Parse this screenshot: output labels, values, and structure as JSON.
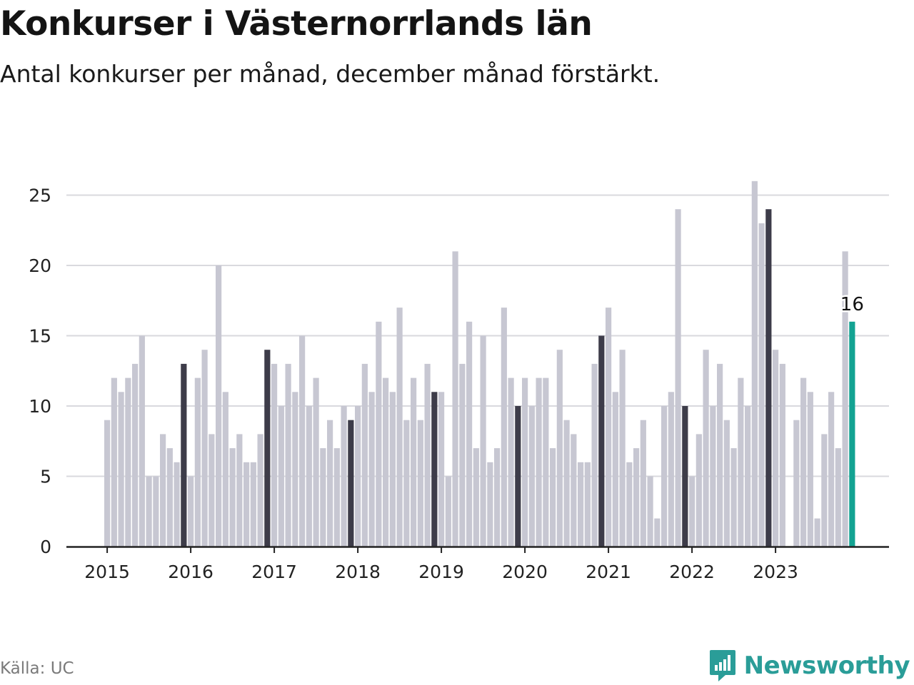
{
  "title": "Konkurser i Västernorrlands län",
  "subtitle": "Antal konkurser per månad, december månad förstärkt.",
  "source": "Källa: UC",
  "brand": "Newsworthy",
  "colors": {
    "bar": "#c7c7d2",
    "december": "#3d3c49",
    "latest": "#13a392",
    "grid": "#d9d9de",
    "axis": "#222222",
    "text": "#222222",
    "brand": "#2a9d98"
  },
  "chart_data": {
    "type": "bar",
    "x_start": "2015-01",
    "x_end": "2023-12",
    "x_ticks": [
      "2015",
      "2016",
      "2017",
      "2018",
      "2019",
      "2020",
      "2021",
      "2022",
      "2023"
    ],
    "ylim": [
      0,
      27
    ],
    "yticks": [
      0,
      5,
      10,
      15,
      20,
      25
    ],
    "grid": true,
    "highlight": "december",
    "values": [
      9,
      12,
      11,
      12,
      13,
      15,
      5,
      5,
      8,
      7,
      6,
      13,
      5,
      12,
      14,
      8,
      20,
      11,
      7,
      8,
      6,
      6,
      8,
      14,
      13,
      10,
      13,
      11,
      15,
      10,
      12,
      7,
      9,
      7,
      10,
      9,
      10,
      13,
      11,
      16,
      12,
      11,
      17,
      9,
      12,
      9,
      13,
      11,
      11,
      5,
      21,
      13,
      16,
      7,
      15,
      6,
      7,
      17,
      12,
      10,
      12,
      10,
      12,
      12,
      7,
      14,
      9,
      8,
      6,
      6,
      13,
      15,
      17,
      11,
      14,
      6,
      7,
      9,
      5,
      2,
      10,
      11,
      24,
      10,
      5,
      8,
      14,
      10,
      13,
      9,
      7,
      12,
      10,
      26,
      23,
      24,
      14,
      13,
      0,
      9,
      12,
      11,
      2,
      8,
      11,
      7,
      21,
      16
    ],
    "annotation": {
      "index": 107,
      "label": "16"
    }
  }
}
